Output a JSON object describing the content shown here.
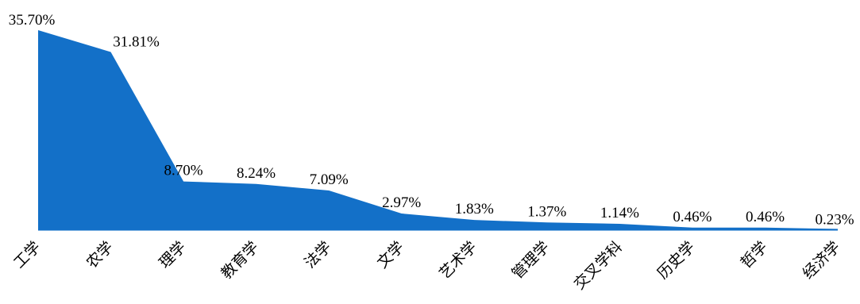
{
  "chart_data": {
    "type": "area",
    "categories": [
      "工学",
      "农学",
      "理学",
      "教育学",
      "法学",
      "文学",
      "艺术学",
      "管理学",
      "交叉学科",
      "历史学",
      "哲学",
      "经济学"
    ],
    "series": [
      {
        "values": [
          35.7,
          31.81,
          8.7,
          8.24,
          7.09,
          2.97,
          1.83,
          1.37,
          1.14,
          0.46,
          0.46,
          0.23
        ],
        "labels": [
          "35.70%",
          "31.81%",
          "8.70%",
          "8.24%",
          "7.09%",
          "2.97%",
          "1.83%",
          "1.37%",
          "1.14%",
          "0.46%",
          "0.46%",
          "0.23%"
        ],
        "color": "#1370c8"
      }
    ],
    "ylim": [
      0,
      35.7
    ],
    "grid": false,
    "legend": "none"
  }
}
